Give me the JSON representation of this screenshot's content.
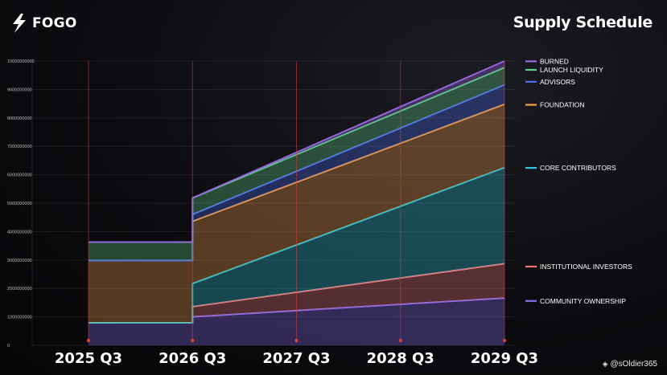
{
  "brand": {
    "name": "FOGO",
    "icon": "bolt-icon"
  },
  "watermark": {
    "icon": "binance-icon",
    "text": "@sOldier365"
  },
  "chart_data": {
    "type": "area",
    "title": "Supply Schedule",
    "x": [
      "2025 Q3",
      "2026 Q3",
      "2027 Q3",
      "2028 Q3",
      "2029 Q3"
    ],
    "x_index_range": [
      0,
      4
    ],
    "ylim": [
      0,
      10000000000
    ],
    "yticks": [
      "0",
      "1000000000",
      "2000000000",
      "3000000000",
      "4000000000",
      "5000000000",
      "6000000000",
      "7000000000",
      "8000000000",
      "9000000000",
      "10000000000"
    ],
    "grid": true,
    "legend_position": "right",
    "series": [
      {
        "name": "COMMUNITY OWNERSHIP",
        "color": "#8a6cf0",
        "points": [
          [
            0,
            790000000
          ],
          [
            1,
            790000000
          ],
          [
            1,
            1000000000
          ],
          [
            4,
            1660000000
          ]
        ]
      },
      {
        "name": "INSTITUTIONAL INVESTORS",
        "color": "#f07a7a",
        "points": [
          [
            0,
            790000000
          ],
          [
            1,
            790000000
          ],
          [
            1,
            1360000000
          ],
          [
            4,
            2870000000
          ]
        ]
      },
      {
        "name": "CORE CONTRIBUTORS",
        "color": "#2ec4d6",
        "points": [
          [
            0,
            790000000
          ],
          [
            1,
            790000000
          ],
          [
            1,
            2170000000
          ],
          [
            4,
            6250000000
          ]
        ]
      },
      {
        "name": "FOUNDATION",
        "color": "#f5a04a",
        "points": [
          [
            0,
            2980000000
          ],
          [
            1,
            2980000000
          ],
          [
            1,
            4360000000
          ],
          [
            4,
            8480000000
          ]
        ]
      },
      {
        "name": "ADVISORS",
        "color": "#4f6cf0",
        "points": [
          [
            0,
            2980000000
          ],
          [
            1,
            2980000000
          ],
          [
            1,
            4600000000
          ],
          [
            4,
            9160000000
          ]
        ]
      },
      {
        "name": "LAUNCH LIQUIDITY",
        "color": "#5fd08a",
        "points": [
          [
            0,
            3630000000
          ],
          [
            1,
            3630000000
          ],
          [
            1,
            5180000000
          ],
          [
            4,
            9770000000
          ]
        ]
      },
      {
        "name": "BURNED",
        "color": "#9a6ae0",
        "points": [
          [
            0,
            3630000000
          ],
          [
            1,
            3630000000
          ],
          [
            1,
            5180000000
          ],
          [
            4,
            10000000000
          ]
        ]
      }
    ],
    "legend": [
      {
        "label": "BURNED",
        "color": "#9a6ae0",
        "value": 9990000000
      },
      {
        "label": "LAUNCH LIQUIDITY",
        "color": "#5fd08a",
        "value": 9690000000
      },
      {
        "label": "ADVISORS",
        "color": "#4f6cf0",
        "value": 9270000000
      },
      {
        "label": "FOUNDATION",
        "color": "#f5a04a",
        "value": 8460000000
      },
      {
        "label": "CORE CONTRIBUTORS",
        "color": "#2ec4d6",
        "value": 6240000000
      },
      {
        "label": "INSTITUTIONAL INVESTORS",
        "color": "#f07a7a",
        "value": 2770000000
      },
      {
        "label": "COMMUNITY OWNERSHIP",
        "color": "#8a6cf0",
        "value": 1560000000
      }
    ]
  }
}
